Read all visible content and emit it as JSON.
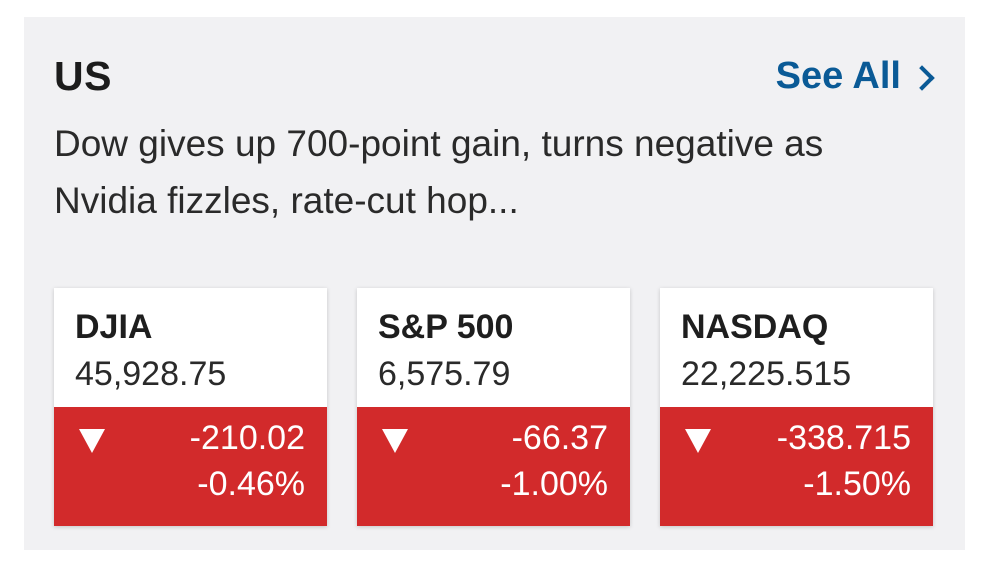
{
  "section": {
    "title": "US",
    "see_all_label": "See All",
    "headline": "Dow gives up 700-point gain, turns negative as Nvidia fizzles, rate-cut hop..."
  },
  "indices": [
    {
      "symbol": "DJIA",
      "price": "45,928.75",
      "change": "-210.02",
      "change_pct": "-0.46%",
      "direction": "down",
      "direction_icon": "down-triangle-icon"
    },
    {
      "symbol": "S&P 500",
      "price": "6,575.79",
      "change": "-66.37",
      "change_pct": "-1.00%",
      "direction": "down",
      "direction_icon": "down-triangle-icon"
    },
    {
      "symbol": "NASDAQ",
      "price": "22,225.515",
      "change": "-338.715",
      "change_pct": "-1.50%",
      "direction": "down",
      "direction_icon": "down-triangle-icon"
    }
  ],
  "colors": {
    "background": "#f1f1f3",
    "link": "#0a5a96",
    "negative": "#d22a2b",
    "tile": "#ffffff"
  }
}
